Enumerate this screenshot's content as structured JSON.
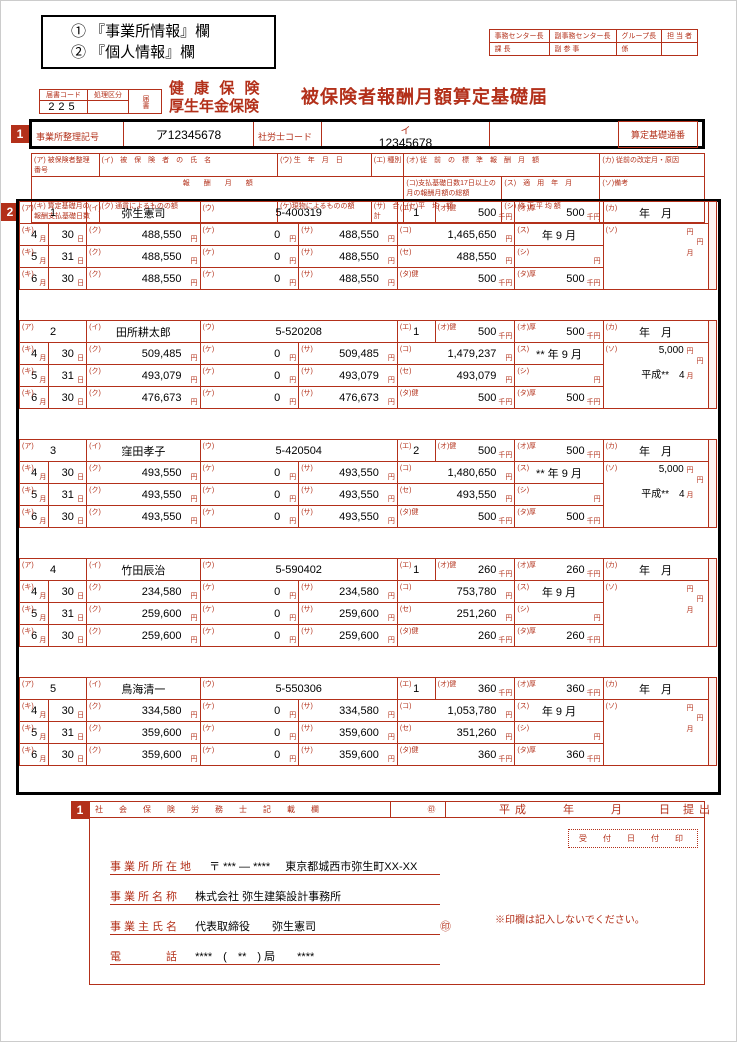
{
  "legend": {
    "line1": "① 『事業所情報』欄",
    "line2": "② 『個人情報』欄"
  },
  "titles": {
    "t1": "健 康 保 険",
    "t2": "厚生年金保険",
    "t3": "被保険者報酬月額算定基礎届"
  },
  "topright": {
    "h1": "事務センター長",
    "h2": "副事務センター長",
    "h3": "グループ長",
    "h4": "担 当 者",
    "r21": "課 長",
    "r22": "副 参 事",
    "r23": "係",
    "r24": ""
  },
  "codebox": {
    "l1": "届書コード",
    "l2": "処理区分",
    "v1": "225",
    "s": "届書"
  },
  "row1": {
    "lbl1": "事業所整理記号",
    "v1": "ア12345678",
    "lbl2": "社労士コード",
    "v2": "",
    "lbl3": "イ",
    "v3": "12345678"
  },
  "notice": "算定基礎通番",
  "sechdr": {
    "a": "(ア) 被保険者整理番号",
    "b": "(イ)　被　保　険　者　の　氏　名",
    "c": "(ウ) 生　年　月　日",
    "d": "(エ) 種別",
    "e": "(オ) 従　前　の　標　準　報　酬　月　額",
    "f": "(カ) 従前の改定月・原因",
    "g": "報　　酬　　月　　額",
    "h": "(コ)支払基礎日数17日以上の月の報酬月額の総額",
    "i": "(ス)　適　用　年　月",
    "j": "(ソ)備考",
    "k1": "(キ) 算定基礎月の報酬支払基礎日数",
    "k2": "(ク) 通貨によるものの額",
    "k3": "(ケ)現物によるものの額",
    "k4": "(サ)　合　計",
    "l": "(セ)平　均　額",
    "m": "(シ) 修 正 平 均 額",
    "n": "(タ) ※ 決 定 後 の 標 準 報 酬 月 額",
    "o": "(チ)※決定予定月",
    "p": "(ト)※作成原因",
    "remark": "遡及支払額\\n昇(降)給差の月額\\n昇(降)給月"
  },
  "persons": [
    {
      "idx": "1",
      "name": "弥生憲司",
      "dob": "5-400319",
      "type": "1",
      "prev1": "500",
      "prev2": "500",
      "apply": "年 9 月",
      "right_top": "",
      "right1": "",
      "right2": "",
      "m1": {
        "mo": "4",
        "d": "30",
        "cash": "488,550",
        "kind": "0",
        "sum": "488,550",
        "tot": "1,465,650"
      },
      "m2": {
        "mo": "5",
        "d": "31",
        "cash": "488,550",
        "kind": "0",
        "sum": "488,550",
        "tot": "488,550"
      },
      "m3": {
        "mo": "6",
        "d": "30",
        "cash": "488,550",
        "kind": "0",
        "sum": "488,550",
        "p1": "500",
        "p2": "500"
      }
    },
    {
      "idx": "2",
      "name": "田所耕太郎",
      "dob": "5-520208",
      "type": "1",
      "prev1": "500",
      "prev2": "500",
      "apply": "** 年 9 月",
      "right_top": "",
      "right1": "5,000",
      "right2": "平成**　4",
      "m1": {
        "mo": "4",
        "d": "30",
        "cash": "509,485",
        "kind": "0",
        "sum": "509,485",
        "tot": "1,479,237"
      },
      "m2": {
        "mo": "5",
        "d": "31",
        "cash": "493,079",
        "kind": "0",
        "sum": "493,079",
        "tot": "493,079"
      },
      "m3": {
        "mo": "6",
        "d": "30",
        "cash": "476,673",
        "kind": "0",
        "sum": "476,673",
        "p1": "500",
        "p2": "500"
      }
    },
    {
      "idx": "3",
      "name": "窪田孝子",
      "dob": "5-420504",
      "type": "2",
      "prev1": "500",
      "prev2": "500",
      "apply": "** 年 9 月",
      "right_top": "",
      "right1": "5,000",
      "right2": "平成**　4",
      "m1": {
        "mo": "4",
        "d": "30",
        "cash": "493,550",
        "kind": "0",
        "sum": "493,550",
        "tot": "1,480,650"
      },
      "m2": {
        "mo": "5",
        "d": "31",
        "cash": "493,550",
        "kind": "0",
        "sum": "493,550",
        "tot": "493,550"
      },
      "m3": {
        "mo": "6",
        "d": "30",
        "cash": "493,550",
        "kind": "0",
        "sum": "493,550",
        "p1": "500",
        "p2": "500"
      }
    },
    {
      "idx": "4",
      "name": "竹田辰治",
      "dob": "5-590402",
      "type": "1",
      "prev1": "260",
      "prev2": "260",
      "apply": "年 9 月",
      "right_top": "",
      "right1": "",
      "right2": "",
      "m1": {
        "mo": "4",
        "d": "30",
        "cash": "234,580",
        "kind": "0",
        "sum": "234,580",
        "tot": "753,780"
      },
      "m2": {
        "mo": "5",
        "d": "31",
        "cash": "259,600",
        "kind": "0",
        "sum": "259,600",
        "tot": "251,260"
      },
      "m3": {
        "mo": "6",
        "d": "30",
        "cash": "259,600",
        "kind": "0",
        "sum": "259,600",
        "p1": "260",
        "p2": "260"
      }
    },
    {
      "idx": "5",
      "name": "鳥海清一",
      "dob": "5-550306",
      "type": "1",
      "prev1": "360",
      "prev2": "360",
      "apply": "年 9 月",
      "right_top": "",
      "right1": "",
      "right2": "",
      "m1": {
        "mo": "4",
        "d": "30",
        "cash": "334,580",
        "kind": "0",
        "sum": "334,580",
        "tot": "1,053,780"
      },
      "m2": {
        "mo": "5",
        "d": "31",
        "cash": "359,600",
        "kind": "0",
        "sum": "359,600",
        "tot": "351,260"
      },
      "m3": {
        "mo": "6",
        "d": "30",
        "cash": "359,600",
        "kind": "0",
        "sum": "359,600",
        "p1": "360",
        "p2": "360"
      }
    }
  ],
  "footer": {
    "toplabel": "社　会　保　険　労　務　士　記　載　欄",
    "seal": "㊞",
    "addr_lbl": "事業所所在地",
    "addr_pre": "〒 *** ― ****",
    "addr": "東京都城西市弥生町XX-XX",
    "name_lbl": "事業所名称",
    "name": "株式会社 弥生建築設計事務所",
    "owner_lbl": "事業主氏名",
    "owner": "代表取締役　　弥生憲司",
    "tel_lbl": "電　　　話",
    "tel": "****　(　**　) 局　　****",
    "submit": "平成　　年　　月　　日 提出",
    "rcv": "受　付　日　付　印",
    "stampnote": "※印欄は記入しないでください。"
  }
}
